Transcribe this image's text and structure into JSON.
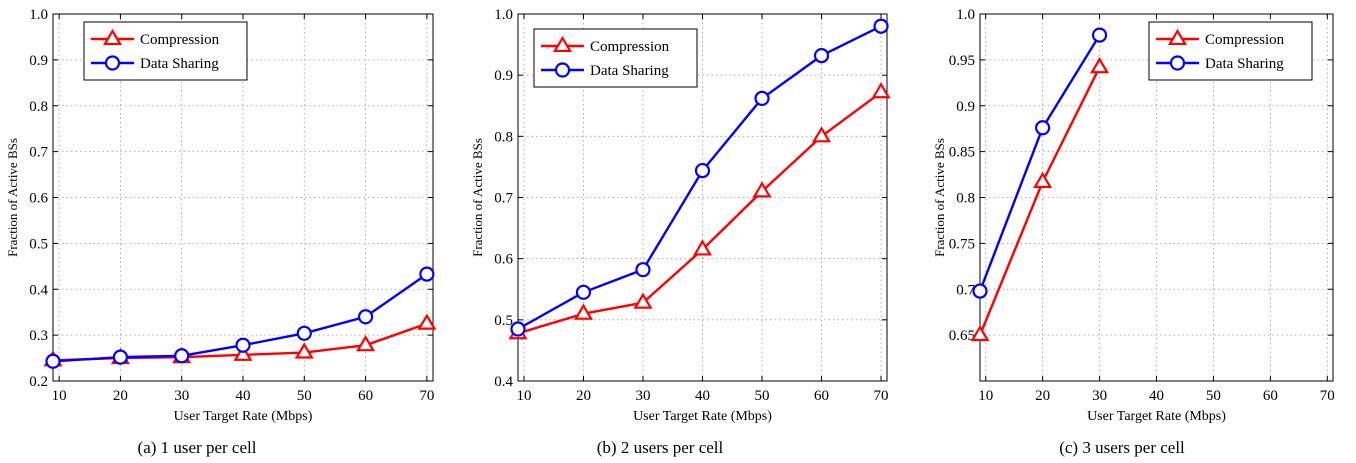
{
  "chart_data": [
    {
      "type": "line",
      "caption": "(a) 1 user per cell",
      "xlabel": "User Target Rate (Mbps)",
      "ylabel": "Fraction of Active BSs",
      "xlim": [
        9,
        71
      ],
      "ylim": [
        0.2,
        1.0
      ],
      "xticks": [
        10,
        20,
        30,
        40,
        50,
        60,
        70
      ],
      "xtick_labels": [
        "10",
        "20",
        "30",
        "40",
        "50",
        "60",
        "70"
      ],
      "yticks": [
        0.2,
        0.3,
        0.4,
        0.5,
        0.6,
        0.7,
        0.8,
        0.9,
        1.0
      ],
      "ytick_labels": [
        "0.2",
        "0.3",
        "0.4",
        "0.5",
        "0.6",
        "0.7",
        "0.8",
        "0.9",
        "1.0"
      ],
      "grid": true,
      "legend_position": "top-left",
      "series": [
        {
          "name": "Compression",
          "color": "#ff0000",
          "marker": "triangle",
          "x": [
            9,
            20,
            30,
            40,
            50,
            60,
            70
          ],
          "y": [
            0.245,
            0.25,
            0.252,
            0.257,
            0.262,
            0.278,
            0.325
          ]
        },
        {
          "name": "Data Sharing",
          "color": "#0000ff",
          "marker": "circle",
          "x": [
            9,
            20,
            30,
            40,
            50,
            60,
            70
          ],
          "y": [
            0.243,
            0.252,
            0.255,
            0.278,
            0.304,
            0.34,
            0.433
          ]
        }
      ]
    },
    {
      "type": "line",
      "caption": "(b) 2 users per cell",
      "xlabel": "User Target Rate (Mbps)",
      "ylabel": "Fraction of Active BSs",
      "xlim": [
        9,
        71
      ],
      "ylim": [
        0.4,
        1.0
      ],
      "xticks": [
        10,
        20,
        30,
        40,
        50,
        60,
        70
      ],
      "xtick_labels": [
        "10",
        "20",
        "30",
        "40",
        "50",
        "60",
        "70"
      ],
      "yticks": [
        0.4,
        0.5,
        0.6,
        0.7,
        0.8,
        0.9,
        1.0
      ],
      "ytick_labels": [
        "0.4",
        "0.5",
        "0.6",
        "0.7",
        "0.8",
        "0.9",
        "1.0"
      ],
      "grid": true,
      "legend_position": "top-left",
      "series": [
        {
          "name": "Compression",
          "color": "#ff0000",
          "marker": "triangle",
          "x": [
            9,
            20,
            30,
            40,
            50,
            60,
            70
          ],
          "y": [
            0.478,
            0.51,
            0.528,
            0.615,
            0.71,
            0.8,
            0.872
          ]
        },
        {
          "name": "Data Sharing",
          "color": "#0000ff",
          "marker": "circle",
          "x": [
            9,
            20,
            30,
            40,
            50,
            60,
            70
          ],
          "y": [
            0.485,
            0.545,
            0.582,
            0.744,
            0.862,
            0.932,
            0.98
          ]
        }
      ]
    },
    {
      "type": "line",
      "caption": "(c) 3 users per cell",
      "xlabel": "User Target Rate (Mbps)",
      "ylabel": "Fraction of Active BSs",
      "xlim": [
        9,
        71
      ],
      "ylim": [
        0.6,
        1.0
      ],
      "xticks": [
        10,
        20,
        30,
        40,
        50,
        60,
        70
      ],
      "xtick_labels": [
        "10",
        "20",
        "30",
        "40",
        "50",
        "60",
        "70"
      ],
      "yticks": [
        0.65,
        0.7,
        0.75,
        0.8,
        0.85,
        0.9,
        0.95,
        1.0
      ],
      "ytick_labels": [
        "0.65",
        "0.7",
        "0.75",
        "0.8",
        "0.85",
        "0.9",
        "0.95",
        "1.0"
      ],
      "grid": true,
      "legend_position": "top-right",
      "series": [
        {
          "name": "Compression",
          "color": "#ff0000",
          "marker": "triangle",
          "x": [
            9,
            20,
            30
          ],
          "y": [
            0.65,
            0.817,
            0.942
          ]
        },
        {
          "name": "Data Sharing",
          "color": "#0000ff",
          "marker": "circle",
          "x": [
            9,
            20,
            30
          ],
          "y": [
            0.698,
            0.876,
            0.977
          ]
        }
      ]
    }
  ]
}
